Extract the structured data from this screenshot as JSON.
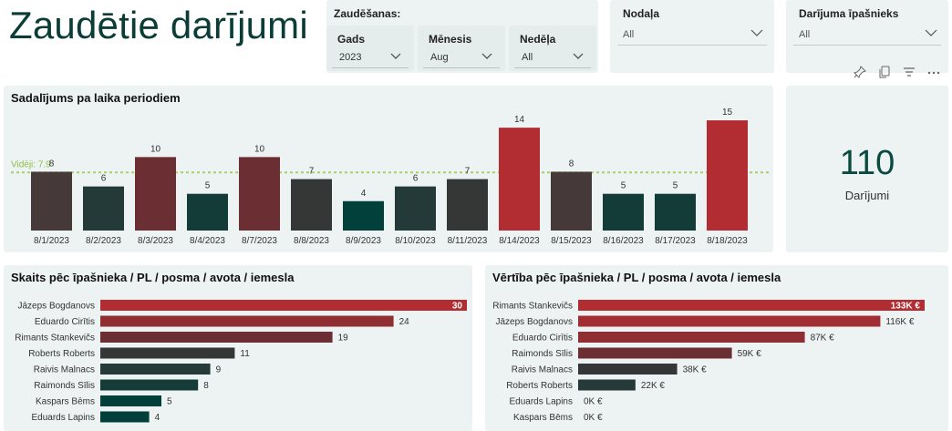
{
  "page_title": "Zaudētie darījumi",
  "filters": {
    "group_title": "Zaudēšanas:",
    "slicers": [
      {
        "label": "Gads",
        "value": "2023"
      },
      {
        "label": "Mēnesis",
        "value": "Aug"
      },
      {
        "label": "Nedēļa",
        "value": "All"
      }
    ],
    "department": {
      "label": "Nodaļa",
      "value": "All"
    },
    "owner": {
      "label": "Darījuma īpašnieks",
      "value": "All"
    }
  },
  "visual_header_icons": [
    "pin-icon",
    "copy-icon",
    "filter-icon",
    "more-options-icon"
  ],
  "kpi": {
    "value": "110",
    "label": "Darījumi"
  },
  "time_chart": {
    "title": "Sadalījums pa laika periodiem",
    "average_label": "Vidēji: 7.9",
    "chart_data": {
      "type": "bar",
      "categories": [
        "8/1/2023",
        "8/2/2023",
        "8/3/2023",
        "8/4/2023",
        "8/7/2023",
        "8/8/2023",
        "8/9/2023",
        "8/10/2023",
        "8/11/2023",
        "8/14/2023",
        "8/15/2023",
        "8/16/2023",
        "8/17/2023",
        "8/18/2023"
      ],
      "values": [
        8,
        6,
        10,
        5,
        10,
        7,
        4,
        6,
        7,
        14,
        8,
        5,
        5,
        15
      ],
      "colors": [
        "#45393a",
        "#233a38",
        "#6b2e33",
        "#133b38",
        "#6b2e33",
        "#353737",
        "#01403b",
        "#233a38",
        "#353737",
        "#b22d31",
        "#45393a",
        "#133b38",
        "#133b38",
        "#b22d31"
      ],
      "average": 7.9,
      "ylim": [
        0,
        16
      ]
    }
  },
  "count_chart": {
    "title": "Skaits pēc īpašnieka / PL / posma / avota / iemesla",
    "chart_data": {
      "type": "bar",
      "orientation": "horizontal",
      "categories": [
        "Jāzeps Bogdanovs",
        "Eduardo Cirītis",
        "Rimants Stankevičs",
        "Roberts Roberts",
        "Raivis Malnacs",
        "Raimonds Sīlis",
        "Kaspars Bēms",
        "Eduards Lapins"
      ],
      "values": [
        30,
        24,
        19,
        11,
        9,
        8,
        5,
        4
      ],
      "labels": [
        "30",
        "24",
        "19",
        "11",
        "9",
        "8",
        "5",
        "4"
      ],
      "colors": [
        "#b22d31",
        "#8f2f33",
        "#6b2e33",
        "#353737",
        "#263a39",
        "#163c39",
        "#003f3a",
        "#003f3a"
      ],
      "xlim": [
        0,
        30
      ]
    }
  },
  "value_chart": {
    "title": "Vērtība pēc īpašnieka / PL / posma / avota / iemesla",
    "chart_data": {
      "type": "bar",
      "orientation": "horizontal",
      "categories": [
        "Rimants Stankevičs",
        "Jāzeps Bogdanovs",
        "Eduardo Cirītis",
        "Raimonds Sīlis",
        "Raivis Malnacs",
        "Roberts Roberts",
        "Eduards Lapins",
        "Kaspars Bēms"
      ],
      "values": [
        133,
        116,
        87,
        59,
        38,
        22,
        0,
        0
      ],
      "labels": [
        "133K €",
        "116K €",
        "87K €",
        "59K €",
        "38K €",
        "22K €",
        "0K €",
        "0K €"
      ],
      "colors": [
        "#b22d31",
        "#a12e32",
        "#8f2f33",
        "#6b2e33",
        "#353737",
        "#263a39",
        "#163c39",
        "#163c39"
      ],
      "xlim": [
        0,
        133
      ]
    }
  }
}
